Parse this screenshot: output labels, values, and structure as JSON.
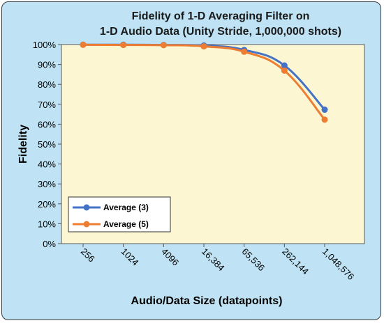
{
  "chart_data": {
    "type": "line",
    "title_lines": [
      "Fidelity of 1-D Averaging Filter on",
      "1-D Audio Data (Unity Stride, 1,000,000 shots)"
    ],
    "xlabel": "Audio/Data Size (datapoints)",
    "ylabel": "Fidelity",
    "categories": [
      "256",
      "1024",
      "4096",
      "16,384",
      "65,536",
      "262,144",
      "1,048,576"
    ],
    "y_ticks": [
      "0%",
      "10%",
      "20%",
      "30%",
      "40%",
      "50%",
      "60%",
      "70%",
      "80%",
      "90%",
      "100%"
    ],
    "ylim": [
      0,
      100
    ],
    "grid": false,
    "legend_position": "bottom-left",
    "series": [
      {
        "name": "Average (3)",
        "color": "#4472c4",
        "values": [
          99.9,
          99.9,
          99.8,
          99.5,
          97.3,
          89.5,
          67.3
        ]
      },
      {
        "name": "Average (5)",
        "color": "#ed7d31",
        "values": [
          99.9,
          99.8,
          99.7,
          99.1,
          96.4,
          86.9,
          62.3
        ]
      }
    ]
  },
  "colors": {
    "plot_bg": "#fdf6d3",
    "frame_bg": "#bfe3f4"
  }
}
